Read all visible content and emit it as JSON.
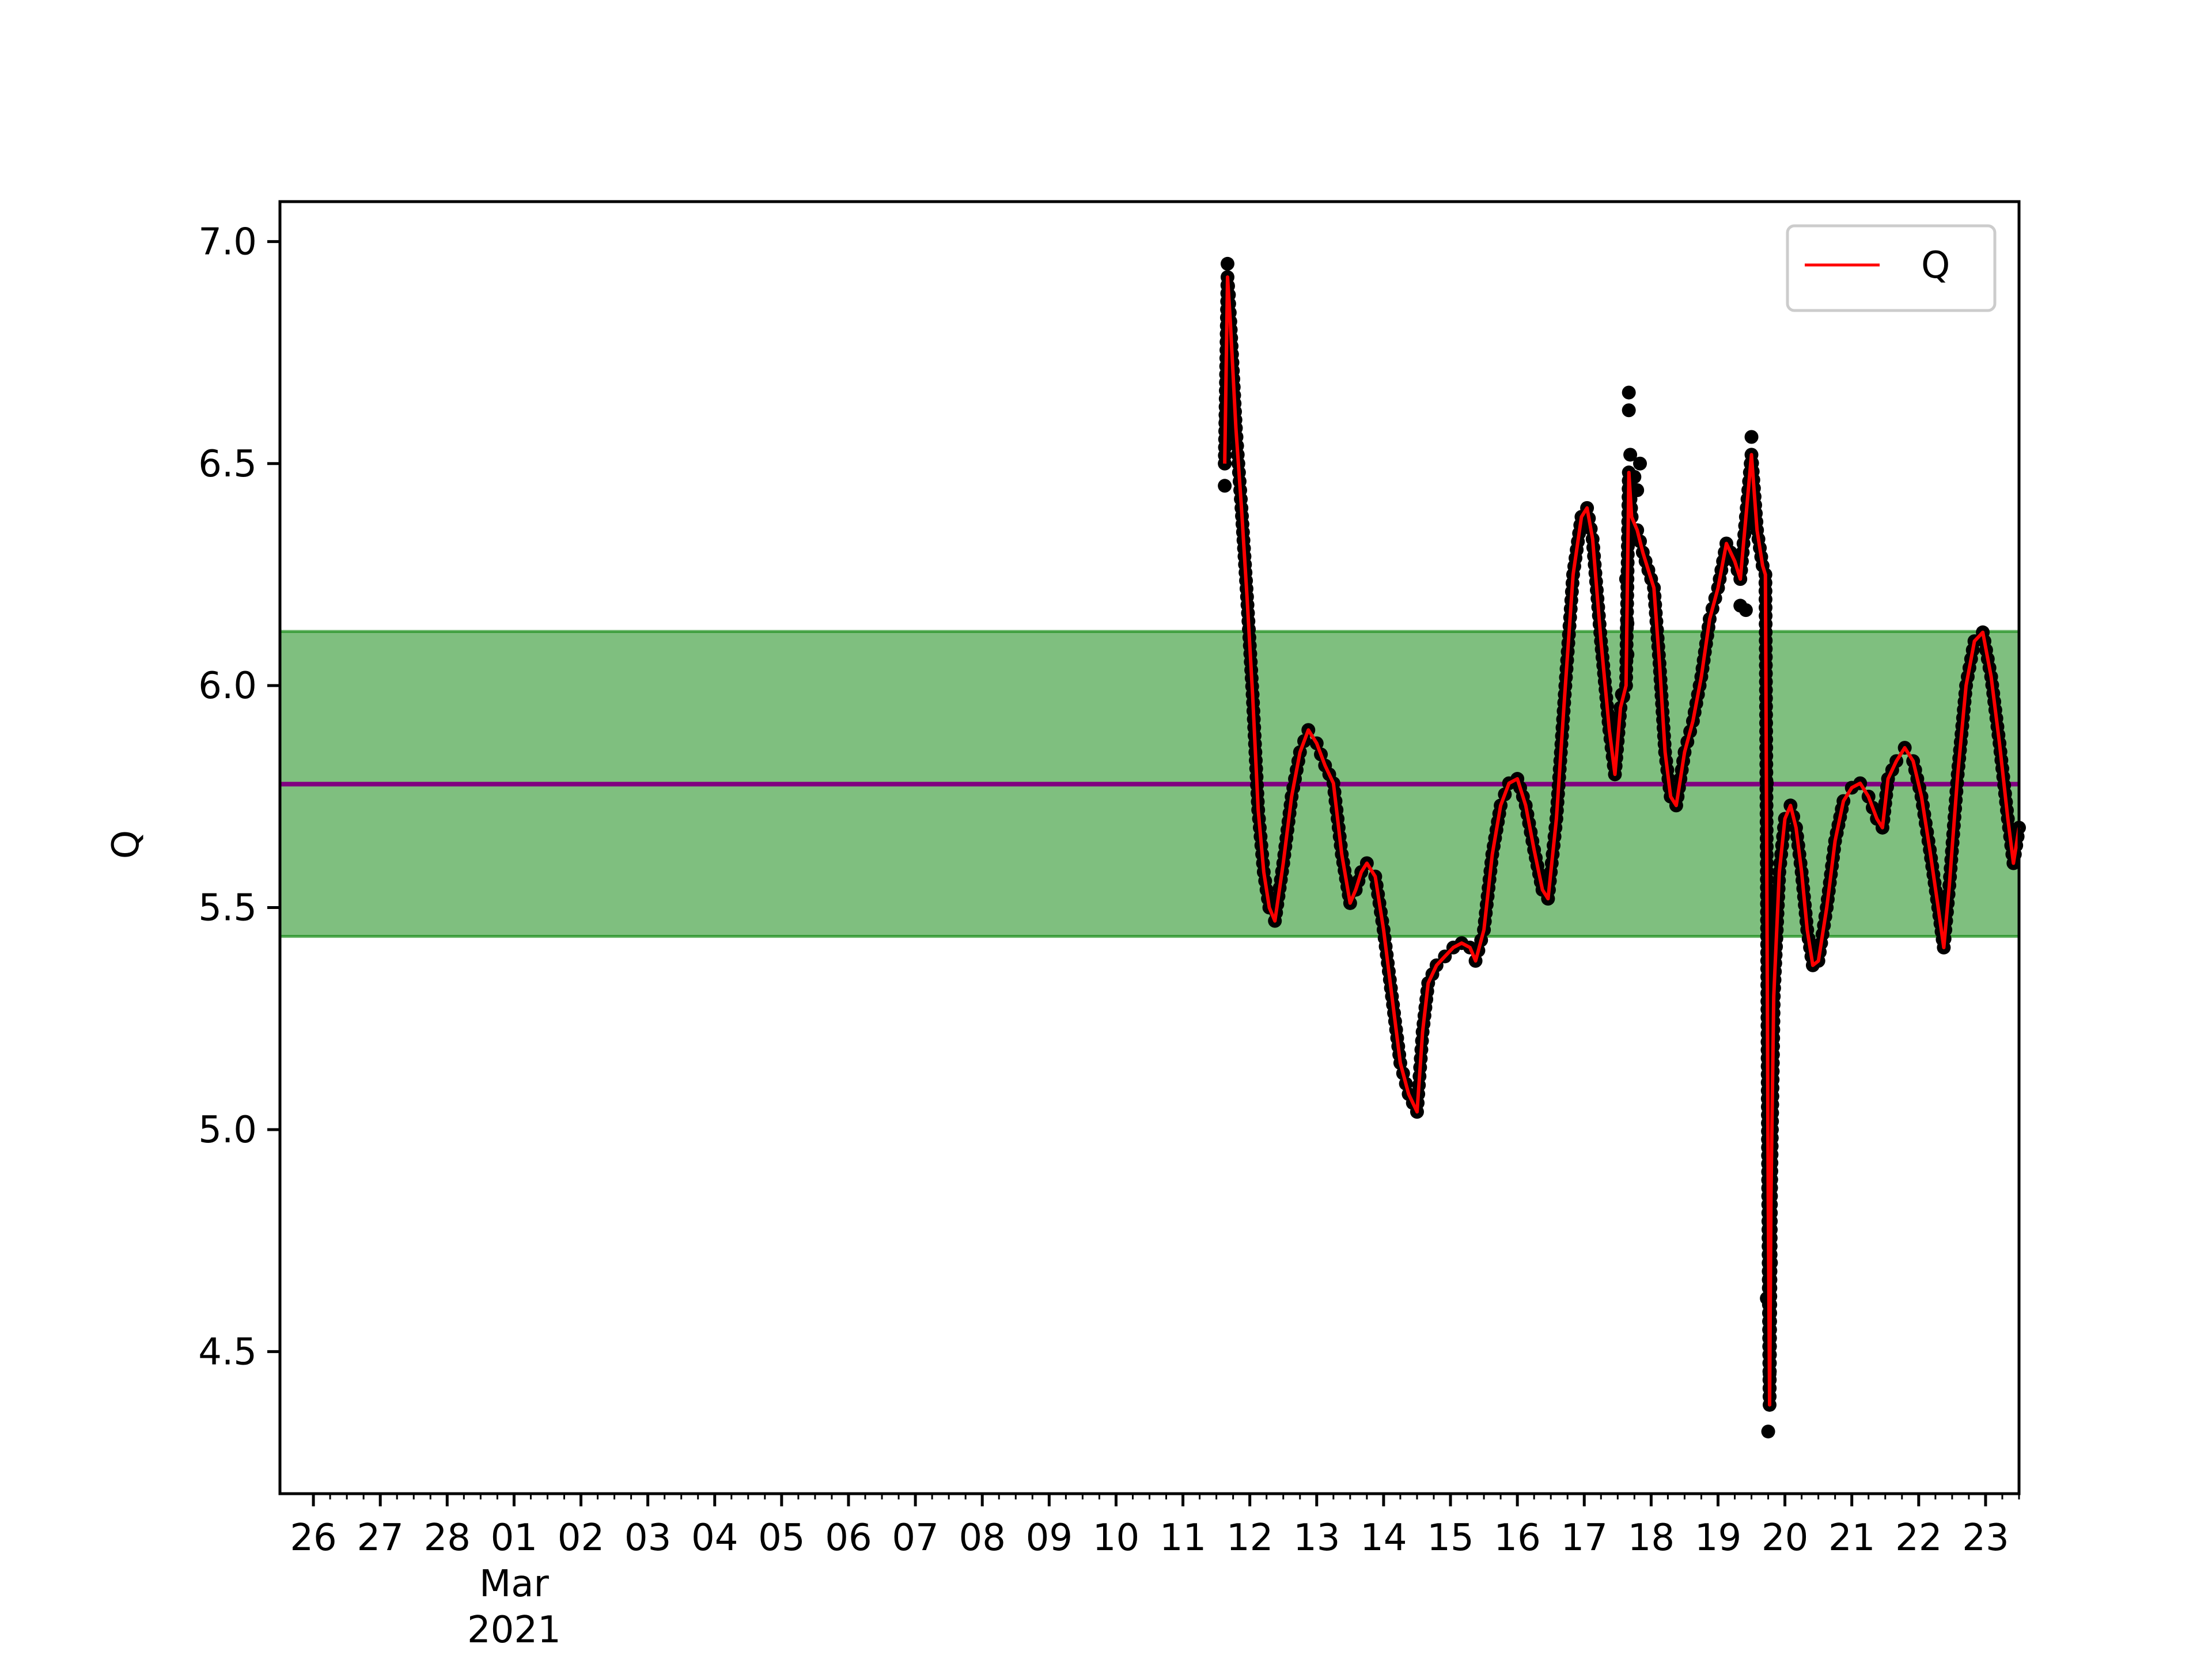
{
  "chart_data": {
    "type": "line",
    "title": "",
    "xlabel": "",
    "ylabel": "Q",
    "x_range": [
      "2021-02-25T12:00",
      "2021-03-23T12:00"
    ],
    "ylim": [
      4.18,
      7.09
    ],
    "y_ticks": [
      4.5,
      5.0,
      5.5,
      6.0,
      6.5,
      7.0
    ],
    "y_tick_labels": [
      "4.5",
      "5.0",
      "5.5",
      "6.0",
      "6.5",
      "7.0"
    ],
    "x_ticks": [
      {
        "date": "2021-02-26",
        "label": "26"
      },
      {
        "date": "2021-02-27",
        "label": "27"
      },
      {
        "date": "2021-02-28",
        "label": "28"
      },
      {
        "date": "2021-03-01",
        "label": "01",
        "sublabels": [
          "Mar",
          "2021"
        ]
      },
      {
        "date": "2021-03-02",
        "label": "02"
      },
      {
        "date": "2021-03-03",
        "label": "03"
      },
      {
        "date": "2021-03-04",
        "label": "04"
      },
      {
        "date": "2021-03-05",
        "label": "05"
      },
      {
        "date": "2021-03-06",
        "label": "06"
      },
      {
        "date": "2021-03-07",
        "label": "07"
      },
      {
        "date": "2021-03-08",
        "label": "08"
      },
      {
        "date": "2021-03-09",
        "label": "09"
      },
      {
        "date": "2021-03-10",
        "label": "10"
      },
      {
        "date": "2021-03-11",
        "label": "11"
      },
      {
        "date": "2021-03-12",
        "label": "12"
      },
      {
        "date": "2021-03-13",
        "label": "13"
      },
      {
        "date": "2021-03-14",
        "label": "14"
      },
      {
        "date": "2021-03-15",
        "label": "15"
      },
      {
        "date": "2021-03-16",
        "label": "16"
      },
      {
        "date": "2021-03-17",
        "label": "17"
      },
      {
        "date": "2021-03-18",
        "label": "18"
      },
      {
        "date": "2021-03-19",
        "label": "19"
      },
      {
        "date": "2021-03-20",
        "label": "20"
      },
      {
        "date": "2021-03-21",
        "label": "21"
      },
      {
        "date": "2021-03-22",
        "label": "22"
      },
      {
        "date": "2021-03-23",
        "label": "23"
      }
    ],
    "band": {
      "lower": 5.435,
      "upper": 6.122,
      "color": "#008000",
      "opacity": 0.5
    },
    "mean_line": {
      "value": 5.778,
      "color": "#800080"
    },
    "series": [
      {
        "name": "Q",
        "color": "#ff0000",
        "marker_color": "#000000",
        "points": [
          [
            "2021-03-11T15:00",
            6.5
          ],
          [
            "2021-03-11T16:00",
            6.92
          ],
          [
            "2021-03-11T17:00",
            6.82
          ],
          [
            "2021-03-11T19:00",
            6.58
          ],
          [
            "2021-03-11T21:00",
            6.4
          ],
          [
            "2021-03-11T23:00",
            6.2
          ],
          [
            "2021-03-12T01:00",
            5.98
          ],
          [
            "2021-03-12T03:00",
            5.72
          ],
          [
            "2021-03-12T05:00",
            5.58
          ],
          [
            "2021-03-12T07:00",
            5.5
          ],
          [
            "2021-03-12T09:00",
            5.47
          ],
          [
            "2021-03-12T12:00",
            5.6
          ],
          [
            "2021-03-12T15:00",
            5.75
          ],
          [
            "2021-03-12T18:00",
            5.85
          ],
          [
            "2021-03-12T21:00",
            5.9
          ],
          [
            "2021-03-13T00:00",
            5.87
          ],
          [
            "2021-03-13T03:00",
            5.82
          ],
          [
            "2021-03-13T06:00",
            5.78
          ],
          [
            "2021-03-13T09:00",
            5.62
          ],
          [
            "2021-03-13T12:00",
            5.51
          ],
          [
            "2021-03-13T14:00",
            5.54
          ],
          [
            "2021-03-13T16:00",
            5.58
          ],
          [
            "2021-03-13T18:00",
            5.6
          ],
          [
            "2021-03-13T21:00",
            5.57
          ],
          [
            "2021-03-14T00:00",
            5.45
          ],
          [
            "2021-03-14T03:00",
            5.3
          ],
          [
            "2021-03-14T06:00",
            5.15
          ],
          [
            "2021-03-14T09:00",
            5.08
          ],
          [
            "2021-03-14T12:00",
            5.04
          ],
          [
            "2021-03-14T14:00",
            5.22
          ],
          [
            "2021-03-14T16:00",
            5.33
          ],
          [
            "2021-03-14T19:00",
            5.37
          ],
          [
            "2021-03-14T22:00",
            5.39
          ],
          [
            "2021-03-15T01:00",
            5.41
          ],
          [
            "2021-03-15T04:00",
            5.42
          ],
          [
            "2021-03-15T07:00",
            5.41
          ],
          [
            "2021-03-15T09:00",
            5.38
          ],
          [
            "2021-03-15T12:00",
            5.45
          ],
          [
            "2021-03-15T15:00",
            5.62
          ],
          [
            "2021-03-15T18:00",
            5.73
          ],
          [
            "2021-03-15T21:00",
            5.78
          ],
          [
            "2021-03-16T00:00",
            5.79
          ],
          [
            "2021-03-16T03:00",
            5.73
          ],
          [
            "2021-03-16T06:00",
            5.63
          ],
          [
            "2021-03-16T09:00",
            5.54
          ],
          [
            "2021-03-16T11:00",
            5.52
          ],
          [
            "2021-03-16T14:00",
            5.7
          ],
          [
            "2021-03-16T17:00",
            5.98
          ],
          [
            "2021-03-16T20:00",
            6.25
          ],
          [
            "2021-03-16T23:00",
            6.38
          ],
          [
            "2021-03-17T01:00",
            6.4
          ],
          [
            "2021-03-17T03:00",
            6.33
          ],
          [
            "2021-03-17T06:00",
            6.1
          ],
          [
            "2021-03-17T09:00",
            5.9
          ],
          [
            "2021-03-17T11:00",
            5.8
          ],
          [
            "2021-03-17T13:00",
            5.95
          ],
          [
            "2021-03-17T15:00",
            6.0
          ],
          [
            "2021-03-17T16:00",
            6.48
          ],
          [
            "2021-03-17T17:00",
            6.38
          ],
          [
            "2021-03-17T19:00",
            6.35
          ],
          [
            "2021-03-17T21:00",
            6.3
          ],
          [
            "2021-03-17T23:00",
            6.26
          ],
          [
            "2021-03-18T01:00",
            6.22
          ],
          [
            "2021-03-18T03:00",
            6.05
          ],
          [
            "2021-03-18T05:00",
            5.85
          ],
          [
            "2021-03-18T07:00",
            5.75
          ],
          [
            "2021-03-18T09:00",
            5.73
          ],
          [
            "2021-03-18T12:00",
            5.85
          ],
          [
            "2021-03-18T15:00",
            5.92
          ],
          [
            "2021-03-18T18:00",
            6.02
          ],
          [
            "2021-03-18T21:00",
            6.15
          ],
          [
            "2021-03-19T00:00",
            6.22
          ],
          [
            "2021-03-19T03:00",
            6.32
          ],
          [
            "2021-03-19T06:00",
            6.28
          ],
          [
            "2021-03-19T08:00",
            6.24
          ],
          [
            "2021-03-19T10:00",
            6.38
          ],
          [
            "2021-03-19T12:00",
            6.52
          ],
          [
            "2021-03-19T14:00",
            6.35
          ],
          [
            "2021-03-19T16:00",
            6.27
          ],
          [
            "2021-03-19T17:00",
            6.25
          ],
          [
            "2021-03-19T17:30",
            5.6
          ],
          [
            "2021-03-19T18:00",
            4.85
          ],
          [
            "2021-03-19T18:30",
            4.38
          ],
          [
            "2021-03-19T19:00",
            4.85
          ],
          [
            "2021-03-19T20:00",
            5.3
          ],
          [
            "2021-03-19T22:00",
            5.58
          ],
          [
            "2021-03-20T00:00",
            5.7
          ],
          [
            "2021-03-20T02:00",
            5.73
          ],
          [
            "2021-03-20T04:00",
            5.68
          ],
          [
            "2021-03-20T06:00",
            5.58
          ],
          [
            "2021-03-20T08:00",
            5.45
          ],
          [
            "2021-03-20T10:00",
            5.37
          ],
          [
            "2021-03-20T12:00",
            5.38
          ],
          [
            "2021-03-20T15:00",
            5.5
          ],
          [
            "2021-03-20T18:00",
            5.65
          ],
          [
            "2021-03-20T21:00",
            5.74
          ],
          [
            "2021-03-21T00:00",
            5.77
          ],
          [
            "2021-03-21T03:00",
            5.78
          ],
          [
            "2021-03-21T06:00",
            5.75
          ],
          [
            "2021-03-21T09:00",
            5.7
          ],
          [
            "2021-03-21T11:00",
            5.68
          ],
          [
            "2021-03-21T13:00",
            5.79
          ],
          [
            "2021-03-21T16:00",
            5.83
          ],
          [
            "2021-03-21T19:00",
            5.86
          ],
          [
            "2021-03-21T22:00",
            5.83
          ],
          [
            "2021-03-22T01:00",
            5.75
          ],
          [
            "2021-03-22T04:00",
            5.63
          ],
          [
            "2021-03-22T07:00",
            5.5
          ],
          [
            "2021-03-22T09:00",
            5.41
          ],
          [
            "2021-03-22T11:00",
            5.55
          ],
          [
            "2021-03-22T14:00",
            5.8
          ],
          [
            "2021-03-22T17:00",
            6.0
          ],
          [
            "2021-03-22T20:00",
            6.1
          ],
          [
            "2021-03-22T23:00",
            6.12
          ],
          [
            "2021-03-23T02:00",
            6.02
          ],
          [
            "2021-03-23T05:00",
            5.87
          ],
          [
            "2021-03-23T08:00",
            5.7
          ],
          [
            "2021-03-23T10:00",
            5.6
          ],
          [
            "2021-03-23T12:00",
            5.68
          ]
        ],
        "scatter_extras": [
          [
            "2021-03-11T15:00",
            6.45
          ],
          [
            "2021-03-11T15:30",
            6.6
          ],
          [
            "2021-03-11T16:00",
            6.95
          ],
          [
            "2021-03-11T16:30",
            6.88
          ],
          [
            "2021-03-17T16:00",
            6.62
          ],
          [
            "2021-03-17T16:00",
            6.66
          ],
          [
            "2021-03-17T16:30",
            6.52
          ],
          [
            "2021-03-17T15:00",
            6.24
          ],
          [
            "2021-03-17T15:30",
            6.14
          ],
          [
            "2021-03-17T15:30",
            6.07
          ],
          [
            "2021-03-17T16:30",
            6.4
          ],
          [
            "2021-03-17T19:00",
            6.44
          ],
          [
            "2021-03-17T20:00",
            6.5
          ],
          [
            "2021-03-17T18:00",
            6.47
          ],
          [
            "2021-03-17T13:30",
            5.98
          ],
          [
            "2021-03-19T12:00",
            6.56
          ],
          [
            "2021-03-19T18:00",
            4.32
          ],
          [
            "2021-03-19T18:30",
            4.45
          ],
          [
            "2021-03-19T17:30",
            4.62
          ],
          [
            "2021-03-19T17:30",
            5.78
          ],
          [
            "2021-03-19T19:00",
            4.7
          ],
          [
            "2021-03-19T10:00",
            6.17
          ],
          [
            "2021-03-19T08:00",
            6.18
          ]
        ]
      }
    ],
    "legend": {
      "position": "top-right",
      "entries": [
        "Q"
      ]
    },
    "grid": false
  }
}
